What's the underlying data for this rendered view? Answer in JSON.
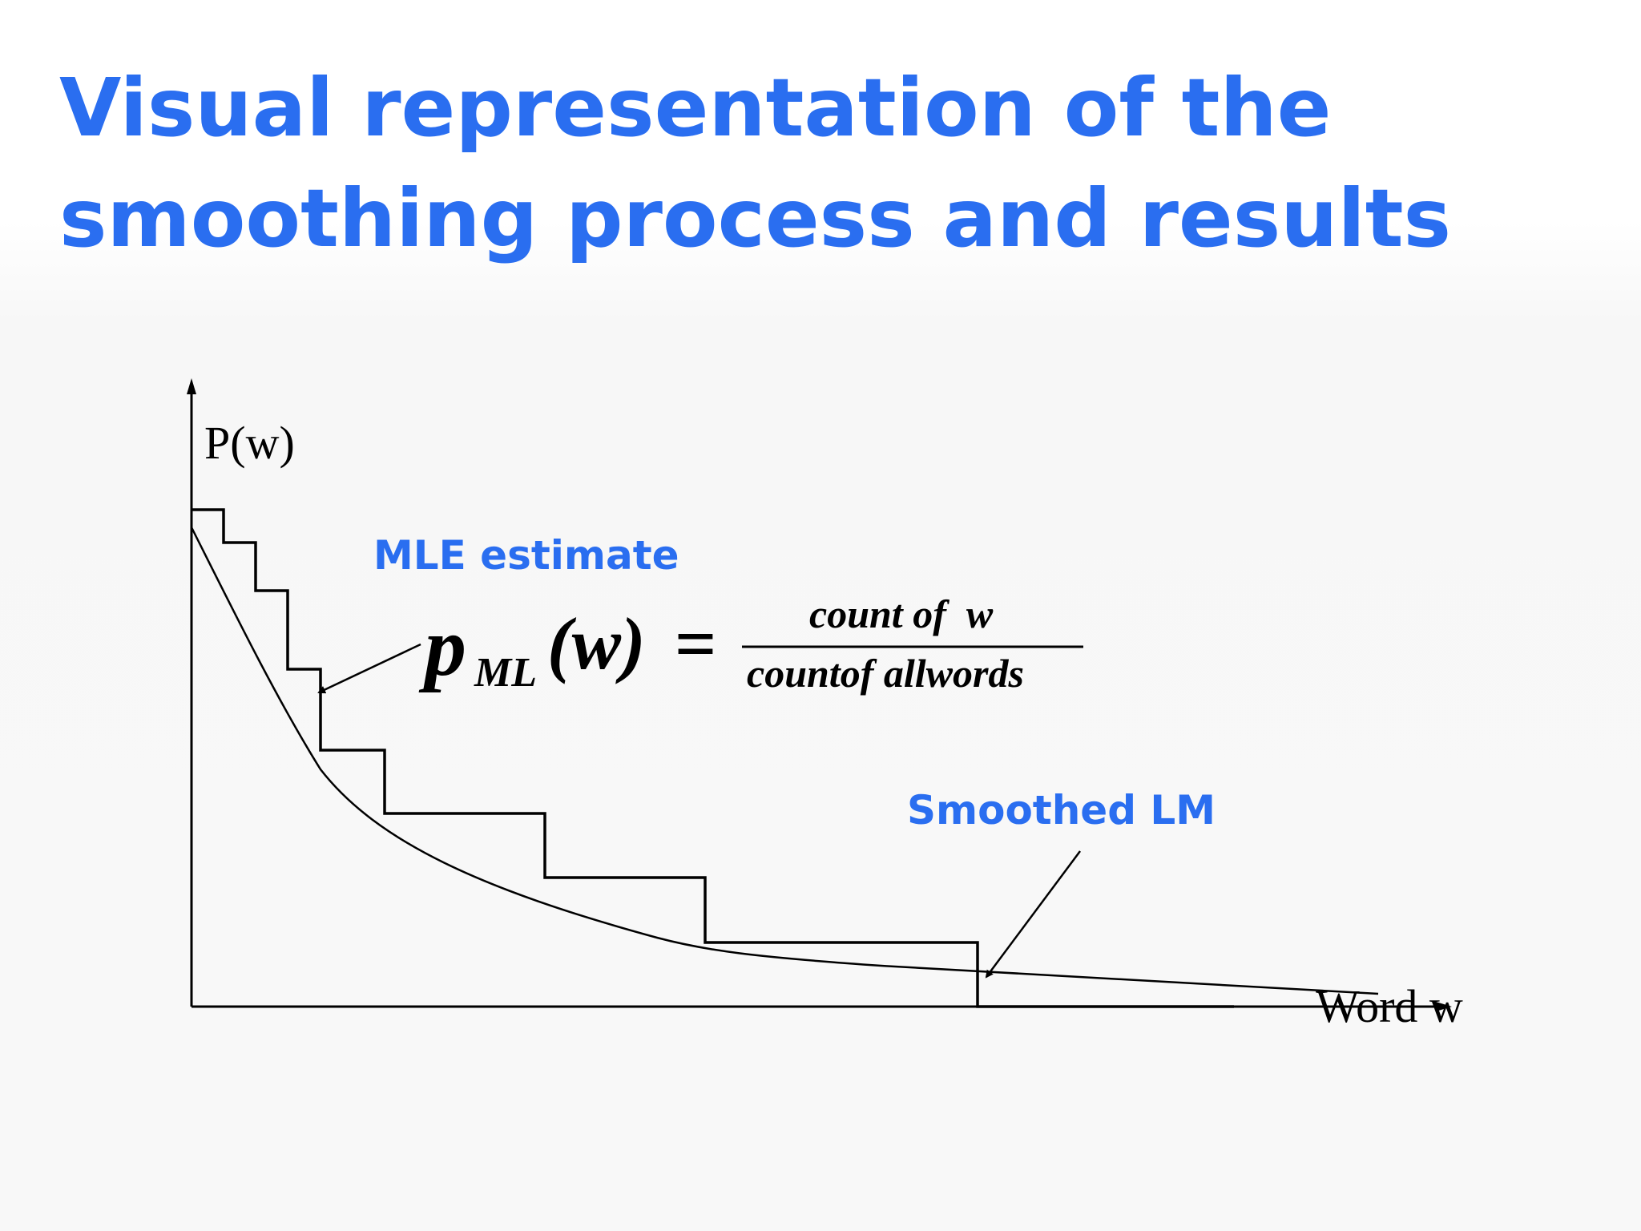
{
  "slide": {
    "title_line1": "Visual representation of the",
    "title_line2": "smoothing process and results",
    "title_color": "#2a6ef0"
  },
  "diagram": {
    "y_axis_label": "P(w)",
    "x_axis_label": "Word w",
    "mle_label": "MLE estimate",
    "smoothed_label": "Smoothed LM",
    "formula": {
      "lhs_symbol": "p",
      "lhs_subscript": "ML",
      "lhs_argument": "(w)",
      "equals": "=",
      "numerator": "count of  w",
      "denominator": "countof allwords"
    },
    "series": [
      {
        "name": "MLE estimate",
        "shape": "step function",
        "color": "#000000"
      },
      {
        "name": "Smoothed LM",
        "shape": "smooth decreasing curve",
        "color": "#000000"
      }
    ],
    "label_color": "#2a6ef0"
  }
}
